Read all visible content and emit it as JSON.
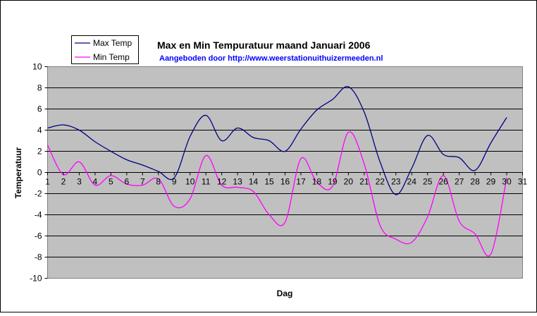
{
  "chart_data": {
    "type": "line",
    "title": "Max en Min Tempuratuur maand Januari 2006",
    "subtitle": "Aangeboden door http://www.weerstationuithuizermeeden.nl",
    "xlabel": "Dag",
    "ylabel": "Temperatuur",
    "x_ticks": [
      "1",
      "2",
      "3",
      "4",
      "5",
      "6",
      "7",
      "8",
      "9",
      "10",
      "11",
      "12",
      "13",
      "14",
      "15",
      "16",
      "17",
      "18",
      "19",
      "20",
      "21",
      "22",
      "23",
      "24",
      "25",
      "26",
      "27",
      "28",
      "29",
      "30",
      "31"
    ],
    "y_ticks": [
      "10",
      "8",
      "6",
      "4",
      "2",
      "0",
      "-2",
      "-4",
      "-6",
      "-8",
      "-10"
    ],
    "xlim": [
      1,
      31
    ],
    "ylim": [
      -10,
      10
    ],
    "grid": "horizontal",
    "legend_position": "top-left",
    "plot_background": "#c0c0c0",
    "series": [
      {
        "name": "Max Temp",
        "color": "#000080",
        "values": [
          4.2,
          4.5,
          4.0,
          2.9,
          2.0,
          1.2,
          0.7,
          0.1,
          -0.5,
          3.4,
          5.4,
          3.0,
          4.2,
          3.3,
          3.0,
          2.0,
          4.1,
          5.9,
          6.9,
          8.1,
          5.7,
          1.0,
          -2.1,
          0.4,
          3.5,
          1.7,
          1.4,
          0.2,
          2.8,
          5.2
        ]
      },
      {
        "name": "Min Temp",
        "color": "#ff00ff",
        "values": [
          2.6,
          -0.2,
          1.0,
          -1.2,
          -0.3,
          -1.1,
          -1.2,
          -0.6,
          -3.2,
          -2.5,
          1.6,
          -1.2,
          -1.4,
          -1.8,
          -4.0,
          -4.7,
          1.3,
          -0.9,
          -1.3,
          3.8,
          0.8,
          -5.0,
          -6.3,
          -6.6,
          -4.2,
          -0.3,
          -4.6,
          -5.8,
          -7.7,
          -0.5
        ]
      }
    ]
  }
}
